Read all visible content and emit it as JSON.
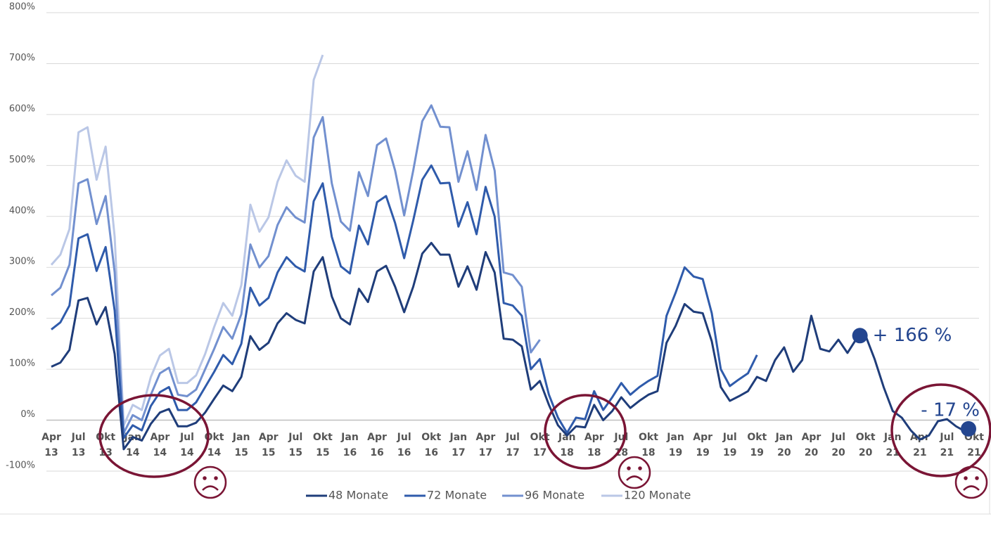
{
  "chart_data": {
    "type": "line",
    "categories": [
      "Apr 13",
      null,
      null,
      "Jul 13",
      null,
      null,
      "Okt 13",
      null,
      null,
      "Jan 14",
      null,
      null,
      "Apr 14",
      null,
      null,
      "Jul 14",
      null,
      null,
      "Okt 14",
      null,
      null,
      "Jan 15",
      null,
      null,
      "Apr 15",
      null,
      null,
      "Jul 15",
      null,
      null,
      "Okt 15",
      null,
      null,
      "Jan 16",
      null,
      null,
      "Apr 16",
      null,
      null,
      "Jul 16",
      null,
      null,
      "Okt 16",
      null,
      null,
      "Jan 17",
      null,
      null,
      "Apr 17",
      null,
      null,
      "Jul 17",
      null,
      null,
      "Okt 17",
      null,
      null,
      "Jan 18",
      null,
      null,
      "Apr 18",
      null,
      null,
      "Jul 18",
      null,
      null,
      "Okt 18",
      null,
      null,
      "Jan 19",
      null,
      null,
      "Apr 19",
      null,
      null,
      "Jul 19",
      null,
      null,
      "Okt 19",
      null,
      null,
      "Jan 20",
      null,
      null,
      "Apr 20",
      null,
      null,
      "Jul 20",
      null,
      null,
      "Okt 20",
      null,
      null,
      "Jan 21",
      null,
      null,
      "Apr 21",
      null,
      null,
      "Jul 21",
      null,
      null,
      "Okt 21"
    ],
    "series": [
      {
        "name": "48 Monate",
        "color": "#1f3d7a",
        "values": [
          105,
          113,
          138,
          235,
          240,
          188,
          222,
          130,
          -57,
          -33,
          -40,
          -7,
          15,
          22,
          -12,
          -12,
          -5,
          15,
          42,
          68,
          57,
          85,
          165,
          138,
          152,
          190,
          210,
          197,
          190,
          292,
          320,
          243,
          200,
          188,
          258,
          232,
          292,
          303,
          262,
          212,
          262,
          327,
          348,
          325,
          325,
          262,
          302,
          256,
          330,
          290,
          160,
          158,
          145,
          60,
          77,
          30,
          -10,
          -30,
          -12,
          -14,
          30,
          0,
          18,
          45,
          24,
          38,
          50,
          57,
          152,
          185,
          228,
          213,
          210,
          155,
          65,
          38,
          47,
          57,
          85,
          77,
          118,
          143,
          95,
          118,
          205,
          140,
          135,
          158,
          132,
          160,
          166,
          120,
          65,
          18,
          5,
          -20,
          -38,
          -30,
          -2,
          2,
          -12,
          -22,
          -17
        ]
      },
      {
        "name": "72 Monate",
        "color": "#2f5bab",
        "values": [
          178,
          192,
          225,
          357,
          365,
          293,
          340,
          215,
          -35,
          -10,
          -20,
          28,
          55,
          65,
          20,
          20,
          35,
          65,
          95,
          128,
          110,
          150,
          260,
          225,
          240,
          290,
          320,
          302,
          292,
          430,
          465,
          360,
          302,
          288,
          382,
          345,
          428,
          440,
          387,
          318,
          392,
          472,
          500,
          465,
          466,
          380,
          428,
          365,
          458,
          400,
          230,
          225,
          205,
          100,
          120,
          50,
          5,
          -25,
          5,
          2,
          57,
          20,
          45,
          73,
          50,
          65,
          77,
          87,
          205,
          250,
          300,
          282,
          277,
          210,
          100,
          67,
          80,
          92,
          128,
          null,
          null,
          null,
          null,
          null,
          null,
          null,
          null,
          null,
          null,
          null,
          null,
          null,
          null,
          null,
          null,
          null,
          null,
          null,
          null,
          null,
          null,
          null,
          null
        ]
      },
      {
        "name": "96 Monate",
        "color": "#7290cf",
        "values": [
          245,
          260,
          305,
          465,
          473,
          385,
          440,
          290,
          -25,
          10,
          0,
          50,
          92,
          103,
          50,
          47,
          60,
          100,
          140,
          183,
          160,
          208,
          345,
          300,
          322,
          383,
          418,
          398,
          388,
          555,
          595,
          465,
          390,
          372,
          487,
          440,
          540,
          553,
          490,
          402,
          490,
          587,
          618,
          576,
          575,
          468,
          528,
          452,
          560,
          490,
          290,
          285,
          262,
          133,
          158,
          null,
          null,
          null,
          null,
          null,
          null,
          null,
          null,
          null,
          null,
          null,
          null,
          null,
          null,
          null,
          null,
          null,
          null,
          null,
          null,
          null,
          null,
          null,
          null,
          null,
          null,
          null,
          null,
          null,
          null,
          null,
          null,
          null,
          null,
          null,
          null,
          null,
          null,
          null,
          null,
          null,
          null,
          null,
          null,
          null,
          null,
          null,
          null
        ]
      },
      {
        "name": "120 Monate",
        "color": "#bac7e6",
        "values": [
          305,
          325,
          375,
          565,
          575,
          472,
          537,
          360,
          -10,
          30,
          20,
          85,
          127,
          140,
          73,
          73,
          88,
          130,
          183,
          230,
          205,
          265,
          423,
          370,
          398,
          468,
          510,
          480,
          468,
          668,
          717,
          null,
          null,
          null,
          null,
          null,
          null,
          null,
          null,
          null,
          null,
          null,
          null,
          null,
          null,
          null,
          null,
          null,
          null,
          null,
          null,
          null,
          null,
          null,
          null,
          null,
          null,
          null,
          null,
          null,
          null,
          null,
          null,
          null,
          null,
          null,
          null,
          null,
          null,
          null,
          null,
          null,
          null,
          null,
          null,
          null,
          null,
          null,
          null,
          null,
          null,
          null,
          null,
          null,
          null,
          null,
          null,
          null,
          null,
          null,
          null,
          null,
          null,
          null,
          null,
          null,
          null,
          null,
          null,
          null,
          null,
          null,
          null
        ]
      }
    ],
    "ylim": [
      -100,
      800
    ],
    "yticks": [
      {
        "value": -100,
        "label": "-100%"
      },
      {
        "value": 0,
        "label": "0%"
      },
      {
        "value": 100,
        "label": "100%"
      },
      {
        "value": 200,
        "label": "200%"
      },
      {
        "value": 300,
        "label": "300%"
      },
      {
        "value": 400,
        "label": "400%"
      },
      {
        "value": 500,
        "label": "500%"
      },
      {
        "value": 600,
        "label": "600%"
      },
      {
        "value": 700,
        "label": "700%"
      },
      {
        "value": 800,
        "label": "800%"
      }
    ],
    "grid": true,
    "legend": "bottom",
    "annotations": [
      {
        "text": "+ 166 %",
        "category": "Okt 20",
        "value": 166
      },
      {
        "text": "- 17 %",
        "category": "Okt 21",
        "value": -17
      }
    ]
  }
}
